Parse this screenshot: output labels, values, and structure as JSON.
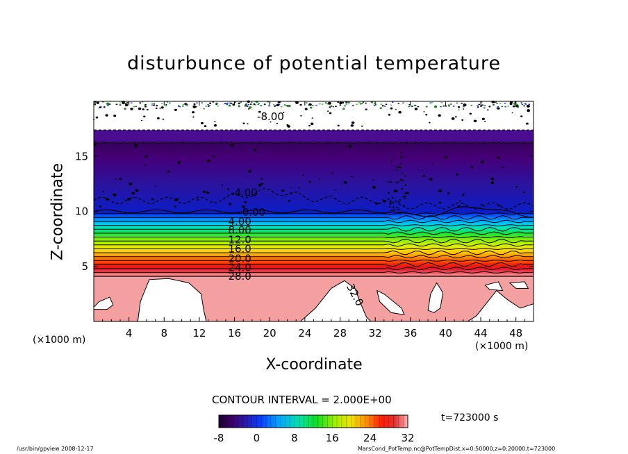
{
  "chart_data": {
    "type": "contour",
    "title": "disturbunce of potential temperature",
    "xlabel": "X-coordinate",
    "ylabel": "Z-coordinate",
    "x_unit_left": "(×1000 m)",
    "x_unit_right": "(×1000 m)",
    "xlim": [
      0,
      50
    ],
    "ylim": [
      0,
      20
    ],
    "xticks": [
      "4",
      "8",
      "12",
      "16",
      "20",
      "24",
      "28",
      "32",
      "36",
      "40",
      "44",
      "48"
    ],
    "yticks": [
      "5",
      "10",
      "15"
    ],
    "contour_labels": [
      {
        "text": "-8.00",
        "x": 20.1,
        "z": 18.6
      },
      {
        "text": "-4.00",
        "x": 17.1,
        "z": 11.7
      },
      {
        "text": "0.00",
        "x": 18.2,
        "z": 9.9
      },
      {
        "text": "4.00",
        "x": 16.6,
        "z": 9.1
      },
      {
        "text": "8.00",
        "x": 16.6,
        "z": 8.3
      },
      {
        "text": "12.0",
        "x": 16.6,
        "z": 7.4
      },
      {
        "text": "16.0",
        "x": 16.6,
        "z": 6.6
      },
      {
        "text": "20.0",
        "x": 16.6,
        "z": 5.7
      },
      {
        "text": "24.0",
        "x": 16.6,
        "z": 4.9
      },
      {
        "text": "28.0",
        "x": 16.6,
        "z": 4.1
      },
      {
        "text": "32.0",
        "x": 29.7,
        "z": 2.4
      }
    ],
    "contour_interval": "CONTOUR INTERVAL = 2.000E+00",
    "colorbar": {
      "ticks": [
        "-8",
        "0",
        "8",
        "16",
        "24",
        "32"
      ],
      "range": [
        -8,
        32
      ]
    },
    "time": "t=723000 s"
  },
  "footer": {
    "left": "/usr/bin/gpview  2008-12-17",
    "right": "MarsCond_PotTemp.nc@PotTempDist,x=0:50000,z=0:20000,t=723000"
  }
}
